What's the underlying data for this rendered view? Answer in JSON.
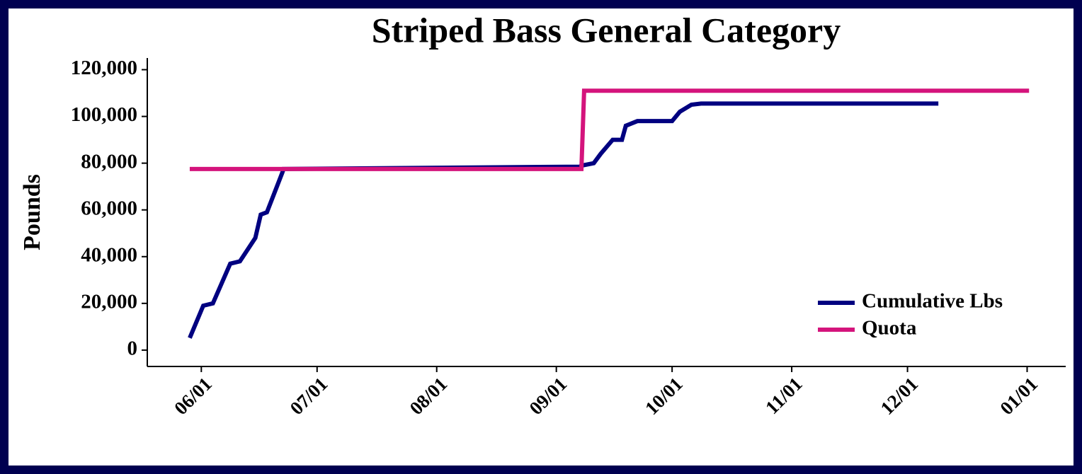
{
  "chart_data": {
    "type": "line",
    "title": "Striped Bass General Category",
    "y_label": "Pounds",
    "x": null,
    "series": [
      {
        "name": "Cumulative Lbs",
        "color": "#000080",
        "x": [
          -3,
          0.5,
          3,
          7.5,
          10,
          14,
          15.4,
          17,
          21,
          21.3,
          98,
          98.7,
          101.7,
          103.5,
          106.6,
          109,
          110,
          113,
          122,
          124,
          127,
          129.5,
          191
        ],
        "values": [
          5200,
          19000,
          20000,
          37000,
          38000,
          48000,
          58000,
          59000,
          76000,
          77500,
          78500,
          79000,
          80000,
          84000,
          90000,
          90000,
          96000,
          98000,
          98000,
          102000,
          105000,
          105500,
          105500
        ]
      },
      {
        "name": "Quota",
        "color": "#d4147c",
        "x": [
          -3,
          98.5,
          99.2,
          214.5
        ],
        "values": [
          77500,
          77500,
          111000,
          111000
        ]
      }
    ],
    "xlim": [
      -14,
      224
    ],
    "xticks": [
      {
        "value": 0,
        "label": "06/01"
      },
      {
        "value": 30,
        "label": "07/01"
      },
      {
        "value": 61,
        "label": "08/01"
      },
      {
        "value": 92,
        "label": "09/01"
      },
      {
        "value": 122,
        "label": "10/01"
      },
      {
        "value": 153,
        "label": "11/01"
      },
      {
        "value": 183,
        "label": "12/01"
      },
      {
        "value": 214,
        "label": "01/01"
      }
    ],
    "ylim": [
      -7000,
      125000
    ],
    "yticks": [
      {
        "value": 0,
        "label": "0"
      },
      {
        "value": 20000,
        "label": "20,000"
      },
      {
        "value": 40000,
        "label": "40,000"
      },
      {
        "value": 60000,
        "label": "60,000"
      },
      {
        "value": 80000,
        "label": "80,000"
      },
      {
        "value": 100000,
        "label": "100,000"
      },
      {
        "value": 120000,
        "label": "120,000"
      }
    ],
    "legend": "lower-right"
  }
}
